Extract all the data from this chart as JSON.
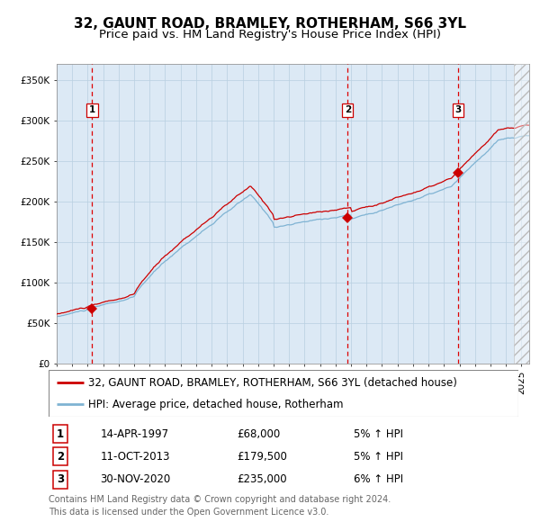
{
  "title": "32, GAUNT ROAD, BRAMLEY, ROTHERHAM, S66 3YL",
  "subtitle": "Price paid vs. HM Land Registry's House Price Index (HPI)",
  "legend_line1": "32, GAUNT ROAD, BRAMLEY, ROTHERHAM, S66 3YL (detached house)",
  "legend_line2": "HPI: Average price, detached house, Rotherham",
  "footer": "Contains HM Land Registry data © Crown copyright and database right 2024.\nThis data is licensed under the Open Government Licence v3.0.",
  "transactions": [
    {
      "num": 1,
      "date": "14-APR-1997",
      "price": 68000,
      "pct": "5%",
      "dir": "↑"
    },
    {
      "num": 2,
      "date": "11-OCT-2013",
      "price": 179500,
      "pct": "5%",
      "dir": "↑"
    },
    {
      "num": 3,
      "date": "30-NOV-2020",
      "price": 235000,
      "pct": "6%",
      "dir": "↑"
    }
  ],
  "transaction_years": [
    1997.29,
    2013.78,
    2020.92
  ],
  "transaction_prices": [
    68000,
    179500,
    235000
  ],
  "ylim": [
    0,
    370000
  ],
  "xlim_start": 1995.0,
  "xlim_end": 2025.5,
  "hatch_start": 2024.5,
  "plot_bg": "#dce9f5",
  "grid_color": "#b8cfe0",
  "red_line_color": "#cc0000",
  "blue_line_color": "#7fb3d3",
  "dashed_line_color": "#dd0000",
  "marker_color": "#cc0000",
  "title_fontsize": 11,
  "subtitle_fontsize": 9.5,
  "tick_fontsize": 7.5,
  "legend_fontsize": 8.5,
  "footer_fontsize": 7
}
